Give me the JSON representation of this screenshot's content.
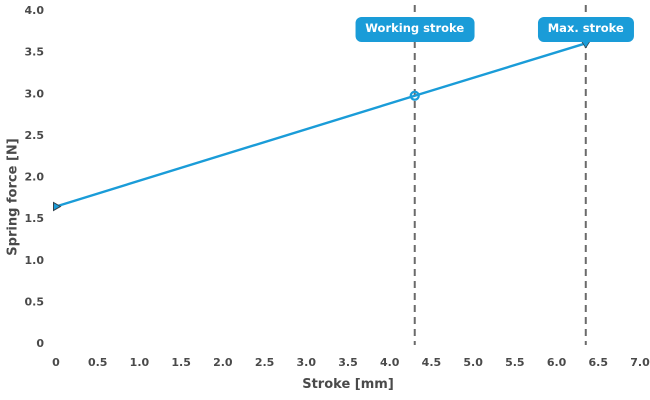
{
  "styles": {
    "accent_blue": "#1a9cd8",
    "dash_gray": "#6a6a6a",
    "text_gray": "#4a4a4a",
    "annotation_text": "#ffffff",
    "marker_edge": "#33424c",
    "background": "#ffffff"
  },
  "chart_data": {
    "type": "line",
    "title": "",
    "xlabel": "Stroke [mm]",
    "ylabel": "Spring force [N]",
    "xlim": [
      0,
      7.0
    ],
    "ylim": [
      0,
      4.0
    ],
    "grid": false,
    "legend": "none",
    "xticks": {
      "values": [
        0,
        0.5,
        1.0,
        1.5,
        2.0,
        2.5,
        3.0,
        3.5,
        4.0,
        4.5,
        5.0,
        5.5,
        6.0,
        6.5,
        7.0
      ],
      "labels": [
        "0",
        "0.5",
        "1.0",
        "1.5",
        "2.0",
        "2.5",
        "3.0",
        "3.5",
        "4.0",
        "4.5",
        "5.0",
        "5.5",
        "6.0",
        "6.5",
        "7.0"
      ]
    },
    "yticks": {
      "values": [
        0,
        0.5,
        1.0,
        1.5,
        2.0,
        2.5,
        3.0,
        3.5,
        4.0
      ],
      "labels": [
        "0",
        "0.5",
        "1.0",
        "1.5",
        "2.0",
        "2.5",
        "3.0",
        "3.5",
        "4.0"
      ]
    },
    "series": [
      {
        "name": "spring-force-line",
        "color": "#1a9cd8",
        "points": [
          {
            "x": 0,
            "y": 1.64,
            "marker": "triangle-right"
          },
          {
            "x": 4.3,
            "y": 2.97,
            "marker": "circle-open"
          },
          {
            "x": 6.35,
            "y": 3.6,
            "marker": "triangle-down"
          }
        ]
      }
    ],
    "annotations": [
      {
        "label": "Working stroke",
        "x": 4.3
      },
      {
        "label": "Max. stroke",
        "x": 6.35
      }
    ]
  }
}
